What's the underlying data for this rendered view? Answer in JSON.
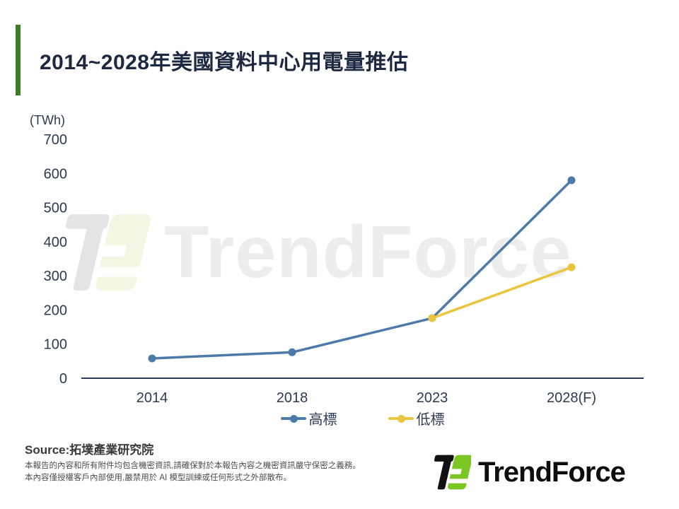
{
  "slide": {
    "title": "2014~2028年美國資料中心用電量推估",
    "unit_label": "(TWh)",
    "source_label": "Source:拓墣產業研究院",
    "disclaimer_line1": "本報告的內容和所有附件均包含機密資訊,請確保對於本報告內容之機密資訊嚴守保密之義務。",
    "disclaimer_line2": "本內容僅授權客戶內部使用,嚴禁用於 AI 模型訓練或任何形式之外部散布。",
    "watermark_text": "TrendForce",
    "footer_logo_text": "TrendForce"
  },
  "colors": {
    "title_accent_green": "#3e7d27",
    "axis_navy": "#2e3a52",
    "high_series_blue": "#4d7aa9",
    "low_series_yellow": "#e9c63e",
    "logo_green": "#7cc623",
    "logo_black": "#111111",
    "watermark_gray": "#ededed"
  },
  "chart_data": {
    "type": "line",
    "title": "2014~2028年美國資料中心用電量推估",
    "ylabel": "(TWh)",
    "xlabel": "",
    "categories": [
      "2014",
      "2018",
      "2023",
      "2028(F)"
    ],
    "series": [
      {
        "name": "高標",
        "color": "#4d7aa9",
        "values": [
          58,
          76,
          176,
          580
        ]
      },
      {
        "name": "低標",
        "color": "#e9c63e",
        "values": [
          null,
          null,
          176,
          325
        ]
      }
    ],
    "ylim": [
      0,
      700
    ],
    "yticks": [
      0,
      100,
      200,
      300,
      400,
      500,
      600,
      700
    ],
    "grid": false,
    "legend_position": "bottom"
  }
}
